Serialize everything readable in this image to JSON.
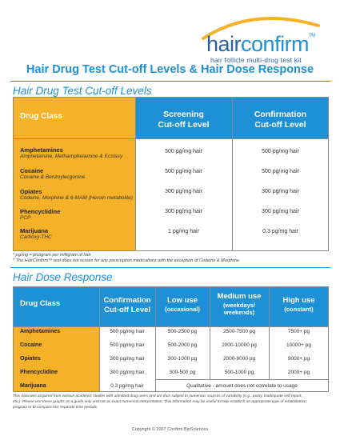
{
  "logo": {
    "part1": "hair",
    "part2": "confirm",
    "tm": "TM",
    "tagline": "hair follicle multi-drug test kit",
    "colors": {
      "primary": "#2b5fa6",
      "accent": "#1e90d6",
      "arc": "#f5b127"
    }
  },
  "title": "Hair Drug Test Cut-off Levels & Hair Dose Response",
  "cutoff": {
    "heading": "Hair Drug Test Cut-off Levels",
    "col_drug": "Drug Class",
    "col_screening": [
      "Screening",
      "Cut-off Level"
    ],
    "col_confirmation": [
      "Confirmation",
      "Cut-off Level"
    ],
    "rows": [
      {
        "name": "Amphetamines",
        "sub": "Amphetamine, Methamphetamine & Ecstasy",
        "screening": "500 pg/mg hair",
        "confirmation": "500 pg/mg hair"
      },
      {
        "name": "Cocaine",
        "sub": "Cocaine & Benzoylecgonine",
        "screening": "500 pg/mg hair",
        "confirmation": "500 pg/mg hair"
      },
      {
        "name": "Opiates",
        "sub": "Codeine, Morphine & 6-MAM (Heroin metabolite)",
        "screening": "300 pg/mg hair",
        "confirmation": "300 pg/mg hair"
      },
      {
        "name": "Phencyclidine",
        "sub": "PCP",
        "screening": "300 pg/mg hair",
        "confirmation": "300 pg/mg hair"
      },
      {
        "name": "Marijuana",
        "sub": "Carboxy-THC",
        "screening": "1 pg/mg hair",
        "confirmation": "0.3 pg/mg hair"
      }
    ],
    "notes": [
      "* pg/mg = picogram per milligram of hair",
      "* The HairConfirm™ test does not screen for any prescription medications with the exception of Codeine & Morphine"
    ]
  },
  "dose": {
    "heading": "Hair Dose Response",
    "col_drug": "Drug Class",
    "col_confirmation": [
      "Confirmation",
      "Cut-off Level"
    ],
    "col_low": [
      "Low use",
      "(occasional)"
    ],
    "col_medium": [
      "Medium use",
      "(weekdays/",
      "weekends)"
    ],
    "col_high": [
      "High use",
      "(constant)"
    ],
    "rows": [
      {
        "name": "Amphetamines",
        "confirmation": "500 pg/mg hair",
        "low": "500-2500 pg",
        "medium": "2500-7500 pg",
        "high": "7500+ pg"
      },
      {
        "name": "Cocaine",
        "confirmation": "500 pg/mg hair",
        "low": "500-2000 pg",
        "medium": "2000-10000 pg",
        "high": "10000+ pg"
      },
      {
        "name": "Opiates",
        "confirmation": "300 pg/mg hair",
        "low": "300-1000 pg",
        "medium": "2000-8000 pg",
        "high": "9000+ pg"
      },
      {
        "name": "Phencyclidine",
        "confirmation": "300 pg/mg hair",
        "low": "300-500 pg",
        "medium": "500-1000 pg",
        "high": "2000+ pg"
      },
      {
        "name": "Marijuana",
        "confirmation": "0.3 pg/mg hair"
      }
    ],
    "marijuana_note": "Qualitative - amount does not correlate to usage",
    "disclaimer": [
      "This data was acquired from various academic studies with admitted drug users and are thus subject to numerous sources of variability (e.g., purity, inadequate self report,",
      "etc.). Please use these graphs as a guide only and not as exact numerical interpretation. This information may be useful to help establish an appropriate type of rehabilitation",
      "program or to compare two separate time periods."
    ]
  },
  "footer": "Copyright © 2007 Confirm BioSciences"
}
